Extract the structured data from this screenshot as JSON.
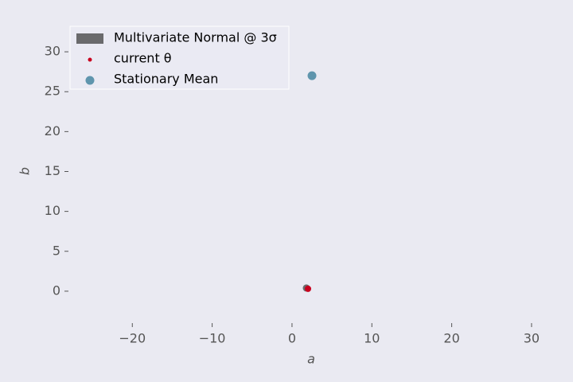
{
  "chart_data": {
    "type": "scatter",
    "xlabel": "a",
    "ylabel": "b",
    "xlim": [
      -28,
      32
    ],
    "ylim": [
      -4,
      33.2
    ],
    "xticks": [
      {
        "value": -20,
        "label": "−20"
      },
      {
        "value": -10,
        "label": "−10"
      },
      0,
      10,
      20,
      30
    ],
    "yticks": [
      0,
      5,
      10,
      15,
      20,
      25,
      30
    ],
    "grid": false,
    "legend": "upper left",
    "series": [
      {
        "name": "Multivariate Normal @ 3σ",
        "color": "#4a4a4a",
        "marker": "ellipse",
        "x": [
          1.8
        ],
        "values": [
          0.4
        ],
        "widths": [
          0.9
        ],
        "heights": [
          0.9
        ]
      },
      {
        "name": "current θ",
        "color": "#c8001e",
        "marker": "dot",
        "x": [
          2.0
        ],
        "values": [
          0.3
        ]
      },
      {
        "name": "Stationary Mean",
        "color": "#5f95ad",
        "marker": "circle",
        "x": [
          2.5
        ],
        "values": [
          27
        ]
      }
    ]
  }
}
